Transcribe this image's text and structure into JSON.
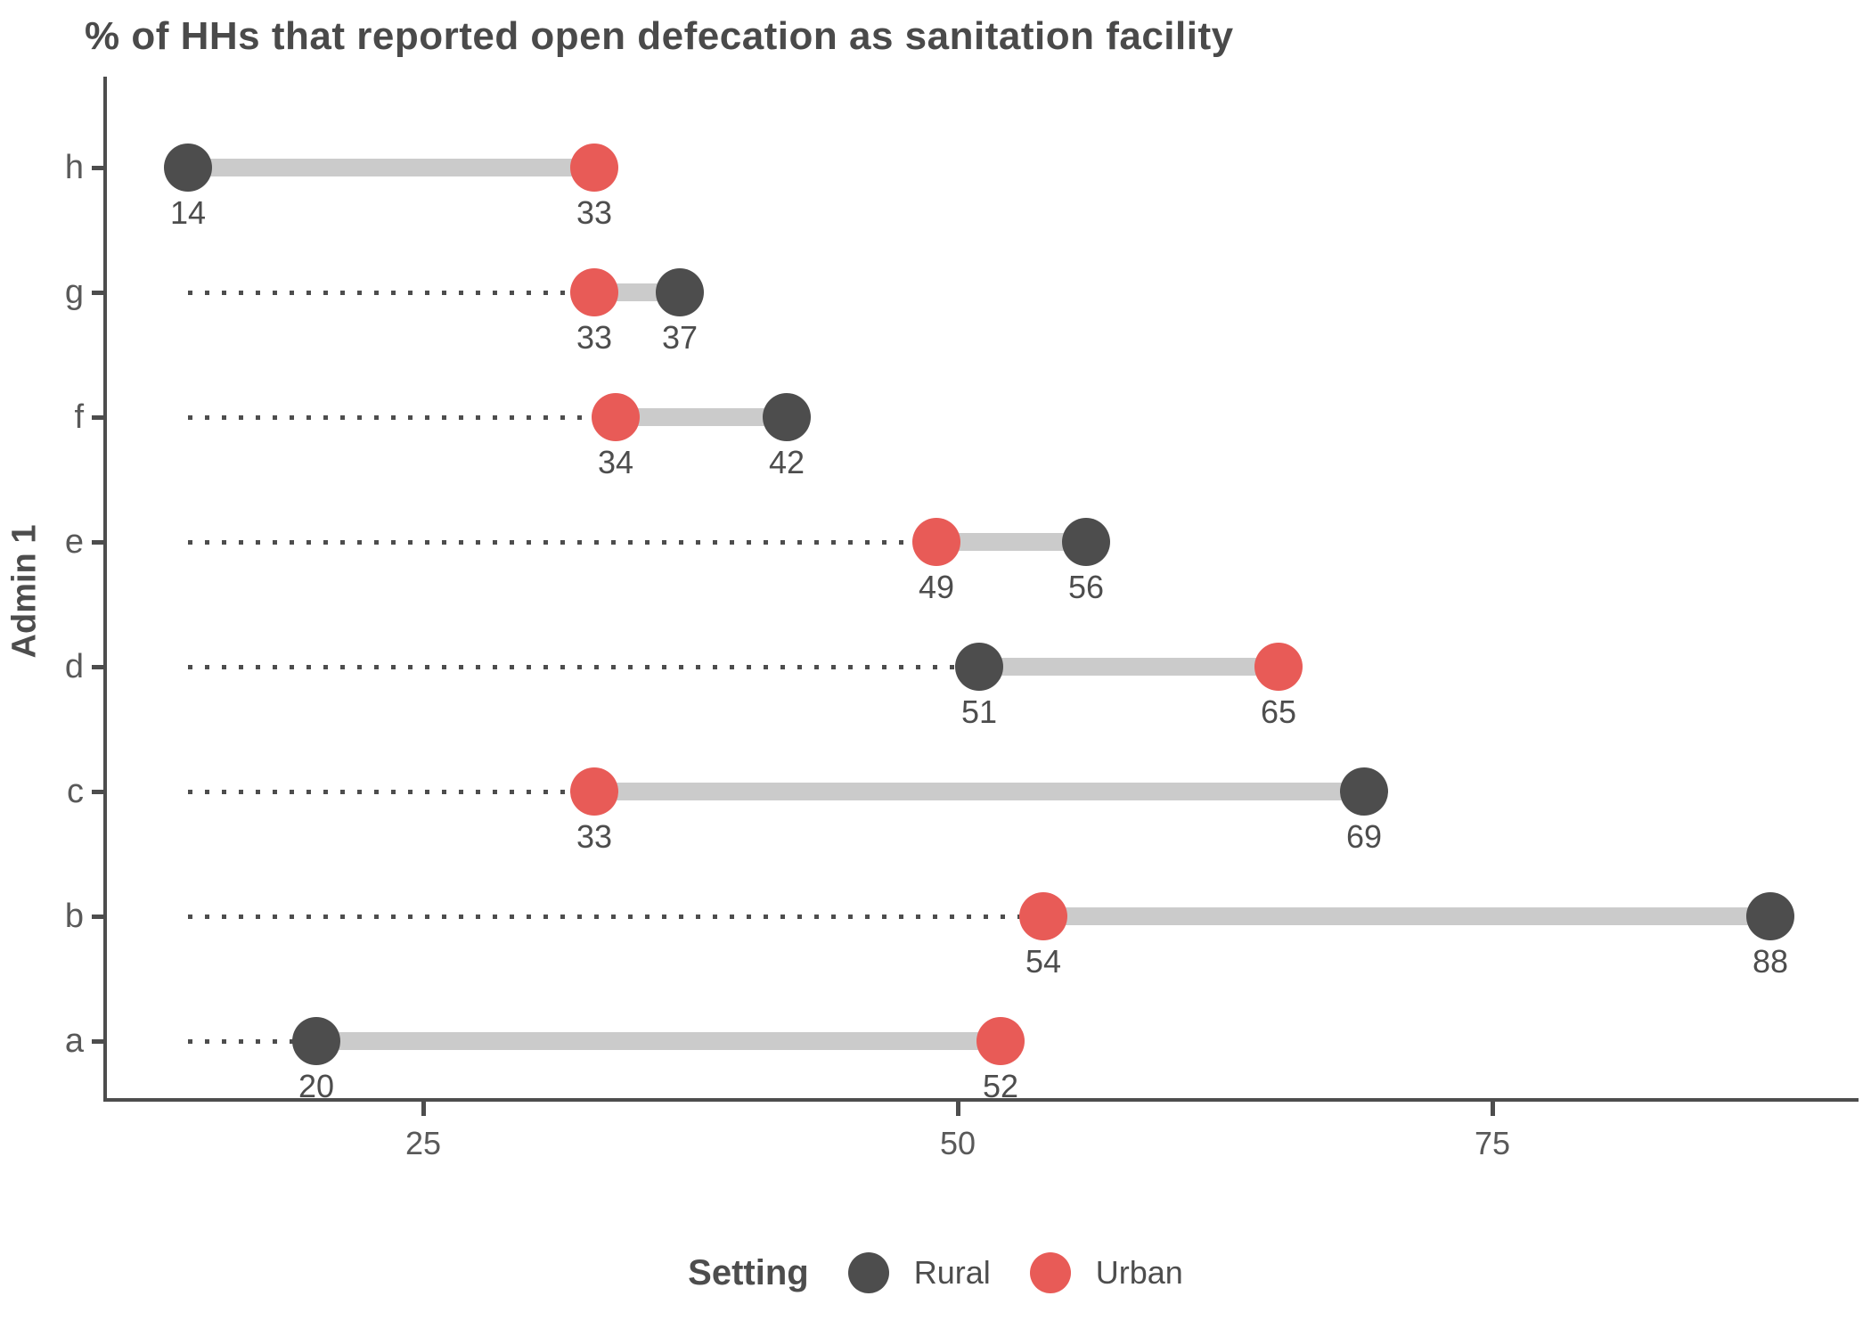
{
  "title": "% of HHs that reported open defecation as sanitation facility",
  "legend": {
    "title": "Setting",
    "entries": [
      {
        "label": "Rural",
        "color": "#4d4d4d"
      },
      {
        "label": "Urban",
        "color": "#e85b57"
      }
    ]
  },
  "chart_data": {
    "type": "dumbbell",
    "title": "% of HHs that reported open defecation as sanitation facility",
    "xlabel": "",
    "ylabel": "Admin 1",
    "x_ticks": [
      25,
      50,
      75
    ],
    "xlim": [
      10,
      92
    ],
    "grid": false,
    "legend_position": "bottom",
    "leader_start_value": 14,
    "connector_color": "#cbcbcb",
    "series": [
      {
        "name": "Rural",
        "color": "#4d4d4d"
      },
      {
        "name": "Urban",
        "color": "#e85b57"
      }
    ],
    "categories": [
      "h",
      "g",
      "f",
      "e",
      "d",
      "c",
      "b",
      "a"
    ],
    "rows": [
      {
        "category": "h",
        "rural": 14,
        "urban": 33
      },
      {
        "category": "g",
        "rural": 37,
        "urban": 33
      },
      {
        "category": "f",
        "rural": 42,
        "urban": 34
      },
      {
        "category": "e",
        "rural": 56,
        "urban": 49
      },
      {
        "category": "d",
        "rural": 51,
        "urban": 65
      },
      {
        "category": "c",
        "rural": 69,
        "urban": 33
      },
      {
        "category": "b",
        "rural": 88,
        "urban": 54
      },
      {
        "category": "a",
        "rural": 20,
        "urban": 52
      }
    ]
  }
}
